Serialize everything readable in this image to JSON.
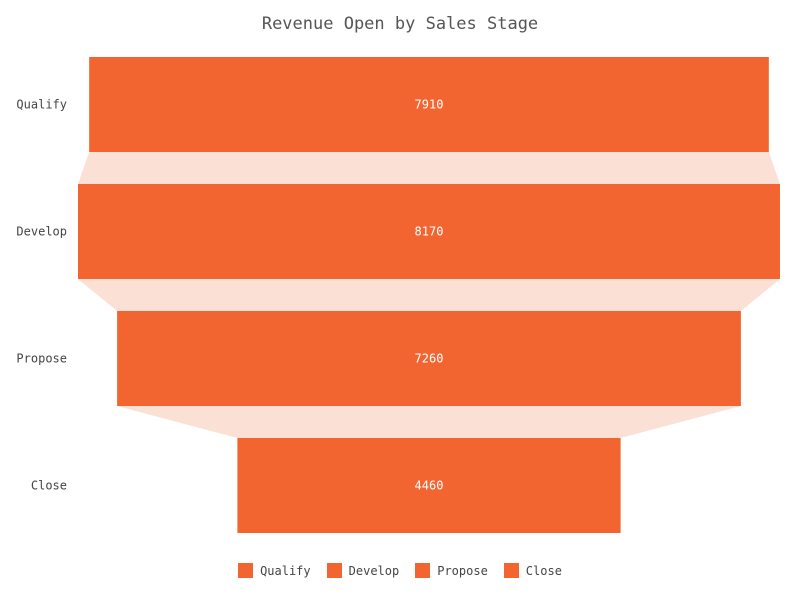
{
  "chart_data": {
    "type": "funnel",
    "title": "Revenue Open by Sales Stage",
    "categories": [
      "Qualify",
      "Develop",
      "Propose",
      "Close"
    ],
    "values": [
      7910,
      8170,
      7260,
      4460
    ],
    "colors": {
      "bar": "#f26530",
      "connector": "#fbe0d6"
    },
    "legend": {
      "position": "bottom",
      "items": [
        "Qualify",
        "Develop",
        "Propose",
        "Close"
      ]
    }
  }
}
